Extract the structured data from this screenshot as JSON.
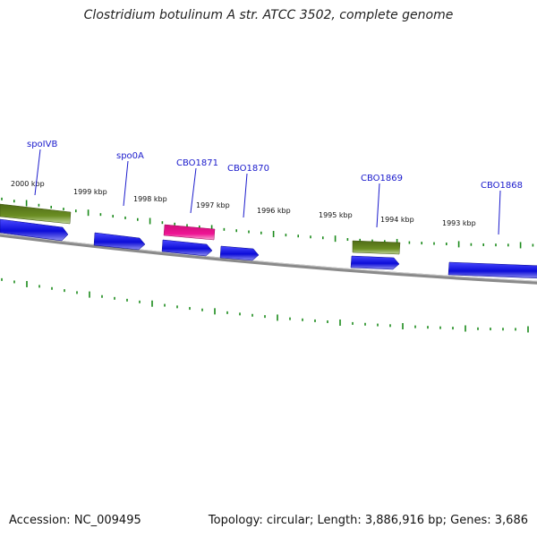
{
  "title": "Clostridium botulinum A str. ATCC 3502, complete genome",
  "footer": {
    "accession": "Accession: NC_009495",
    "summary": "Topology: circular; Length: 3,886,916 bp; Genes: 3,686"
  },
  "colors": {
    "forward_gene": "#1010e6",
    "reverse_gene": "#6b8e23",
    "highlight_gene": "#ee1493",
    "label": "#1a1acc",
    "tick": "#1a8a1a",
    "backbone": "#7a7a7a"
  },
  "position_labels": [
    "2000 kbp",
    "1999 kbp",
    "1998 kbp",
    "1997 kbp",
    "1996 kbp",
    "1995 kbp",
    "1994 kbp",
    "1993 kbp"
  ],
  "genes": [
    {
      "name": "spoIVB",
      "strand": "reverse",
      "color_key": "reverse_gene"
    },
    {
      "name": "spo0A",
      "strand": "forward",
      "color_key": "forward_gene"
    },
    {
      "name": "CBO1871",
      "strand": "forward",
      "color_key": "highlight_gene"
    },
    {
      "name": "CBO1870",
      "strand": "forward",
      "color_key": "forward_gene"
    },
    {
      "name": "CBO1869",
      "strand": "reverse",
      "color_key": "reverse_gene"
    },
    {
      "name": "CBO1868",
      "strand": "forward",
      "color_key": "forward_gene"
    }
  ]
}
